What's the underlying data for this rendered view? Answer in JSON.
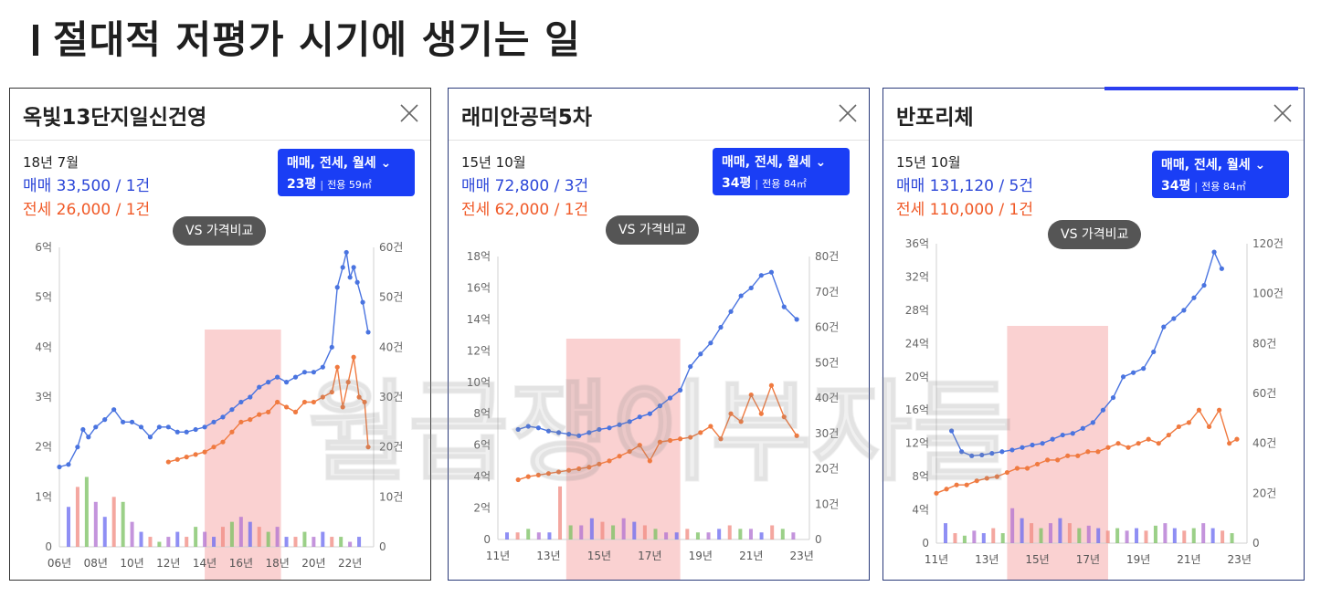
{
  "page_title": "절대적 저평가 시기에 생기는 일",
  "watermark": "월급쟁이부자들",
  "ui": {
    "filter_line1": "매매, 전세, 월세",
    "vs_button": "VS 가격비교"
  },
  "colors": {
    "sale_line": "#4a74e0",
    "jeonse_line": "#f07a40",
    "highlight_band": "#f7b2b2",
    "filter_button": "#1a3ef5",
    "vs_button": "#555555"
  },
  "cards": [
    {
      "title": "옥빛13단지일신건영",
      "date": "18년 7월",
      "sale_text": "매매 33,500 / 1건",
      "jeonse_text": "전세 26,000 / 1건",
      "pyeong": "23평",
      "area": "전용 59㎡"
    },
    {
      "title": "래미안공덕5차",
      "date": "15년 10월",
      "sale_text": "매매 72,800 / 3건",
      "jeonse_text": "전세 62,000 / 1건",
      "pyeong": "34평",
      "area": "전용 84㎡"
    },
    {
      "title": "반포리체",
      "date": "15년 10월",
      "sale_text": "매매 131,120 / 5건",
      "jeonse_text": "전세 110,000 / 1건",
      "pyeong": "34평",
      "area": "전용 84㎡"
    }
  ],
  "chart_data": [
    {
      "type": "line",
      "y_unit": "억",
      "y2_unit": "건",
      "ylim": [
        0,
        6
      ],
      "y2lim": [
        0,
        60
      ],
      "y_ticks": [
        "0",
        "1억",
        "2억",
        "3억",
        "4억",
        "5억",
        "6억"
      ],
      "y2_ticks": [
        "0",
        "10건",
        "20건",
        "30건",
        "40건",
        "50건",
        "60건"
      ],
      "xlim": [
        2006,
        2023.3
      ],
      "x_ticks": [
        "06년",
        "08년",
        "10년",
        "12년",
        "14년",
        "16년",
        "18년",
        "20년",
        "22년"
      ],
      "highlight": [
        2014.0,
        2018.2
      ],
      "series": [
        {
          "name": "매매",
          "x": [
            2006.0,
            2006.5,
            2007.0,
            2007.3,
            2007.6,
            2008.0,
            2008.5,
            2009.0,
            2009.5,
            2010.0,
            2010.5,
            2011.0,
            2011.5,
            2012.0,
            2012.5,
            2013.0,
            2013.5,
            2014.0,
            2014.5,
            2015.0,
            2015.5,
            2016.0,
            2016.5,
            2017.0,
            2017.5,
            2018.0,
            2018.5,
            2019.0,
            2019.5,
            2020.0,
            2020.5,
            2021.0,
            2021.3,
            2021.6,
            2021.8,
            2022.0,
            2022.2,
            2022.4,
            2022.7,
            2023.0
          ],
          "y": [
            1.6,
            1.65,
            2.0,
            2.35,
            2.2,
            2.4,
            2.55,
            2.75,
            2.5,
            2.5,
            2.4,
            2.2,
            2.4,
            2.4,
            2.3,
            2.3,
            2.35,
            2.4,
            2.5,
            2.6,
            2.75,
            2.9,
            3.0,
            3.2,
            3.3,
            3.4,
            3.3,
            3.4,
            3.5,
            3.5,
            3.6,
            4.0,
            5.2,
            5.6,
            5.9,
            5.4,
            5.6,
            5.3,
            4.9,
            4.3
          ]
        },
        {
          "name": "전세",
          "x": [
            2012.0,
            2012.5,
            2013.0,
            2013.5,
            2014.0,
            2014.5,
            2015.0,
            2015.5,
            2016.0,
            2016.5,
            2017.0,
            2017.5,
            2018.0,
            2018.5,
            2019.0,
            2019.5,
            2020.0,
            2020.5,
            2021.0,
            2021.3,
            2021.6,
            2021.9,
            2022.2,
            2022.5,
            2022.8,
            2023.0
          ],
          "y": [
            1.7,
            1.75,
            1.8,
            1.85,
            1.9,
            2.0,
            2.1,
            2.3,
            2.5,
            2.55,
            2.65,
            2.7,
            2.9,
            2.8,
            2.7,
            2.9,
            2.9,
            3.0,
            3.1,
            3.6,
            2.8,
            3.3,
            3.8,
            3.0,
            2.9,
            2.0
          ]
        }
      ],
      "volume": [
        8,
        12,
        14,
        9,
        6,
        10,
        9,
        5,
        3,
        2,
        1,
        2,
        3,
        2,
        4,
        3,
        2,
        4,
        5,
        6,
        5,
        4,
        3,
        4,
        2,
        2,
        3,
        2,
        3,
        2,
        2,
        1,
        2
      ]
    },
    {
      "type": "line",
      "y_unit": "억",
      "y2_unit": "건",
      "ylim": [
        0,
        18
      ],
      "y2lim": [
        0,
        80
      ],
      "y_ticks": [
        "0",
        "2억",
        "4억",
        "6억",
        "8억",
        "10억",
        "12억",
        "14억",
        "16억",
        "18억"
      ],
      "y2_ticks": [
        "0",
        "10건",
        "20건",
        "30건",
        "40건",
        "50건",
        "60건",
        "70건",
        "80건"
      ],
      "xlim": [
        2011,
        2023.3
      ],
      "x_ticks": [
        "11년",
        "13년",
        "15년",
        "17년",
        "19년",
        "21년",
        "23년"
      ],
      "highlight": [
        2013.7,
        2018.2
      ],
      "series": [
        {
          "name": "매매",
          "x": [
            2011.8,
            2012.2,
            2012.6,
            2013.0,
            2013.4,
            2013.8,
            2014.2,
            2014.6,
            2015.0,
            2015.4,
            2015.8,
            2016.2,
            2016.6,
            2017.0,
            2017.4,
            2017.8,
            2018.2,
            2018.6,
            2019.0,
            2019.4,
            2019.8,
            2020.2,
            2020.6,
            2021.0,
            2021.4,
            2021.8,
            2022.3,
            2022.8
          ],
          "y": [
            7.0,
            7.2,
            7.1,
            6.9,
            6.8,
            6.7,
            6.6,
            6.8,
            7.0,
            7.1,
            7.3,
            7.5,
            7.8,
            8.0,
            8.5,
            9.0,
            9.5,
            11.0,
            11.8,
            12.5,
            13.5,
            14.5,
            15.5,
            16.0,
            16.8,
            17.0,
            14.8,
            14.0
          ]
        },
        {
          "name": "전세",
          "x": [
            2011.8,
            2012.2,
            2012.6,
            2013.0,
            2013.4,
            2013.8,
            2014.2,
            2014.6,
            2015.0,
            2015.4,
            2015.8,
            2016.2,
            2016.6,
            2017.0,
            2017.4,
            2017.8,
            2018.2,
            2018.6,
            2019.0,
            2019.4,
            2019.8,
            2020.2,
            2020.6,
            2021.0,
            2021.4,
            2021.8,
            2022.3,
            2022.8
          ],
          "y": [
            3.8,
            4.0,
            4.1,
            4.2,
            4.3,
            4.4,
            4.5,
            4.6,
            4.8,
            5.0,
            5.3,
            5.6,
            6.0,
            5.0,
            6.2,
            6.3,
            6.4,
            6.5,
            6.8,
            7.2,
            6.4,
            8.0,
            7.5,
            9.2,
            8.0,
            9.8,
            7.8,
            6.6
          ]
        }
      ],
      "volume": [
        2,
        2,
        3,
        2,
        2,
        15,
        4,
        4,
        6,
        5,
        4,
        6,
        5,
        4,
        3,
        2,
        2,
        3,
        2,
        2,
        3,
        4,
        3,
        3,
        2,
        4,
        3,
        2
      ]
    },
    {
      "type": "line",
      "y_unit": "억",
      "y2_unit": "건",
      "ylim": [
        0,
        36
      ],
      "y2lim": [
        0,
        120
      ],
      "y_ticks": [
        "0",
        "4억",
        "8억",
        "12억",
        "16억",
        "20억",
        "24억",
        "28억",
        "32억",
        "36억"
      ],
      "y2_ticks": [
        "0",
        "20건",
        "40건",
        "60건",
        "80건",
        "100건",
        "120건"
      ],
      "xlim": [
        2011,
        2023.3
      ],
      "x_ticks": [
        "11년",
        "13년",
        "15년",
        "17년",
        "19년",
        "21년",
        "23년"
      ],
      "highlight": [
        2013.8,
        2017.8
      ],
      "series": [
        {
          "name": "매매",
          "x": [
            2011.6,
            2012.0,
            2012.4,
            2012.8,
            2013.2,
            2013.6,
            2014.0,
            2014.4,
            2014.8,
            2015.2,
            2015.6,
            2016.0,
            2016.4,
            2016.8,
            2017.2,
            2017.6,
            2018.0,
            2018.4,
            2018.8,
            2019.2,
            2019.6,
            2020.0,
            2020.4,
            2020.8,
            2021.2,
            2021.6,
            2022.0,
            2022.3
          ],
          "y": [
            13.5,
            11.0,
            10.5,
            10.6,
            10.8,
            11.0,
            11.2,
            11.5,
            11.8,
            12.0,
            12.5,
            13.0,
            13.2,
            13.8,
            14.5,
            16.0,
            17.5,
            20.0,
            20.5,
            21.0,
            23.0,
            26.0,
            27.0,
            28.0,
            29.5,
            31.0,
            35.0,
            33.0
          ]
        },
        {
          "name": "전세",
          "x": [
            2011.0,
            2011.4,
            2011.8,
            2012.2,
            2012.6,
            2013.0,
            2013.4,
            2013.8,
            2014.2,
            2014.6,
            2015.0,
            2015.4,
            2015.8,
            2016.2,
            2016.6,
            2017.0,
            2017.4,
            2017.8,
            2018.2,
            2018.6,
            2019.0,
            2019.4,
            2019.8,
            2020.2,
            2020.6,
            2021.0,
            2021.4,
            2021.8,
            2022.2,
            2022.6,
            2022.9
          ],
          "y": [
            6.0,
            6.5,
            7.0,
            7.0,
            7.5,
            7.8,
            8.0,
            8.5,
            9.0,
            9.0,
            9.5,
            10.0,
            10.0,
            10.5,
            10.5,
            11.0,
            11.0,
            11.5,
            12.0,
            11.5,
            12.0,
            12.5,
            12.0,
            13.0,
            14.0,
            14.5,
            16.0,
            14.0,
            16.0,
            12.0,
            12.5
          ]
        }
      ],
      "volume": [
        8,
        4,
        3,
        5,
        4,
        6,
        4,
        14,
        10,
        8,
        6,
        8,
        10,
        8,
        6,
        7,
        6,
        5,
        6,
        5,
        6,
        5,
        7,
        8,
        6,
        5,
        6,
        8,
        6,
        5,
        4
      ]
    }
  ]
}
